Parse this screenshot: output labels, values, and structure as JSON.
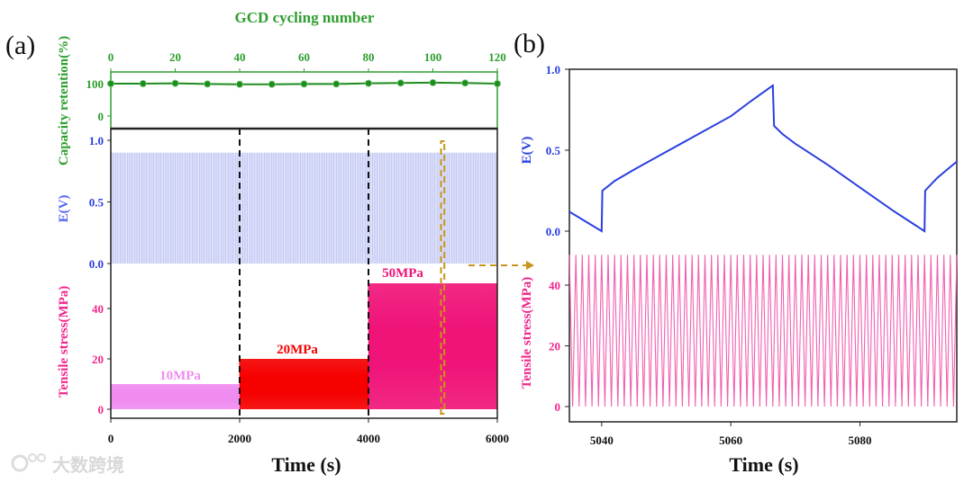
{
  "panels": {
    "a": "(a)",
    "b": "(b)"
  },
  "watermark": "大数跨境",
  "colors": {
    "green": "#2e9e2e",
    "blue": "#2a3fe0",
    "e_fill": "#c4caf4",
    "pink_axis": "#f0288c",
    "stress_10": "#f08cf0",
    "stress_20": "#f50000",
    "stress_50": "#f0147a",
    "stress_zoom": "#f060b0",
    "orange": "#c8961e"
  },
  "chart_data": [
    {
      "id": "a",
      "type": "line",
      "title": "",
      "top_axis": {
        "label": "GCD cycling number",
        "range": [
          0,
          120
        ],
        "ticks": [
          0,
          20,
          40,
          60,
          80,
          100,
          120
        ]
      },
      "capacity_retention": {
        "ylabel": "Capacity retention(%)",
        "yticks": [
          0,
          100
        ],
        "x": [
          0,
          10,
          20,
          30,
          40,
          50,
          60,
          70,
          80,
          90,
          100,
          110,
          120
        ],
        "values": [
          100,
          100,
          101,
          99,
          98,
          98,
          99,
          99,
          101,
          102,
          103,
          102,
          100
        ]
      },
      "voltage": {
        "ylabel": "E(V)",
        "ylim": [
          0,
          1.0
        ],
        "yticks": [
          "0.0",
          "0.5",
          "1.0"
        ],
        "oscillation_min": 0.0,
        "oscillation_max": 0.9
      },
      "stress": {
        "ylabel": "Tensile stress(MPa)",
        "yticks": [
          0,
          20,
          40
        ],
        "segments": [
          {
            "start": 0,
            "end": 2000,
            "max": 10,
            "label": "10MPa",
            "colorKey": "stress_10"
          },
          {
            "start": 2000,
            "end": 4000,
            "max": 20,
            "label": "20MPa",
            "colorKey": "stress_20"
          },
          {
            "start": 4000,
            "end": 6000,
            "max": 50,
            "label": "50MPa",
            "colorKey": "stress_50"
          }
        ]
      },
      "xlabel": "Time (s)",
      "xlim": [
        0,
        6000
      ],
      "xticks": [
        0,
        2000,
        4000,
        6000
      ],
      "dividers": [
        2000,
        4000
      ],
      "zoom_window": [
        5000,
        5150
      ]
    },
    {
      "id": "b",
      "type": "line",
      "xlabel": "Time (s)",
      "xlim": [
        5035,
        5095
      ],
      "xticks": [
        5040,
        5060,
        5080
      ],
      "voltage": {
        "ylabel": "E(V)",
        "ylim": [
          0,
          1.0
        ],
        "yticks": [
          "0.0",
          "0.5",
          "1.0"
        ],
        "points": [
          [
            5035,
            0.12
          ],
          [
            5040,
            0.0
          ],
          [
            5040.1,
            0.25
          ],
          [
            5042,
            0.31
          ],
          [
            5045,
            0.38
          ],
          [
            5050,
            0.49
          ],
          [
            5055,
            0.6
          ],
          [
            5060,
            0.71
          ],
          [
            5063,
            0.8
          ],
          [
            5066.5,
            0.9
          ],
          [
            5066.7,
            0.65
          ],
          [
            5068,
            0.6
          ],
          [
            5070,
            0.54
          ],
          [
            5075,
            0.41
          ],
          [
            5080,
            0.27
          ],
          [
            5085,
            0.13
          ],
          [
            5090,
            0.0
          ],
          [
            5090.1,
            0.25
          ],
          [
            5092,
            0.33
          ],
          [
            5095,
            0.43
          ]
        ]
      },
      "stress": {
        "ylabel": "Tensile stress(MPa)",
        "yticks": [
          0,
          20,
          40
        ],
        "min": 0,
        "max": 50,
        "period_s": 1
      }
    }
  ]
}
